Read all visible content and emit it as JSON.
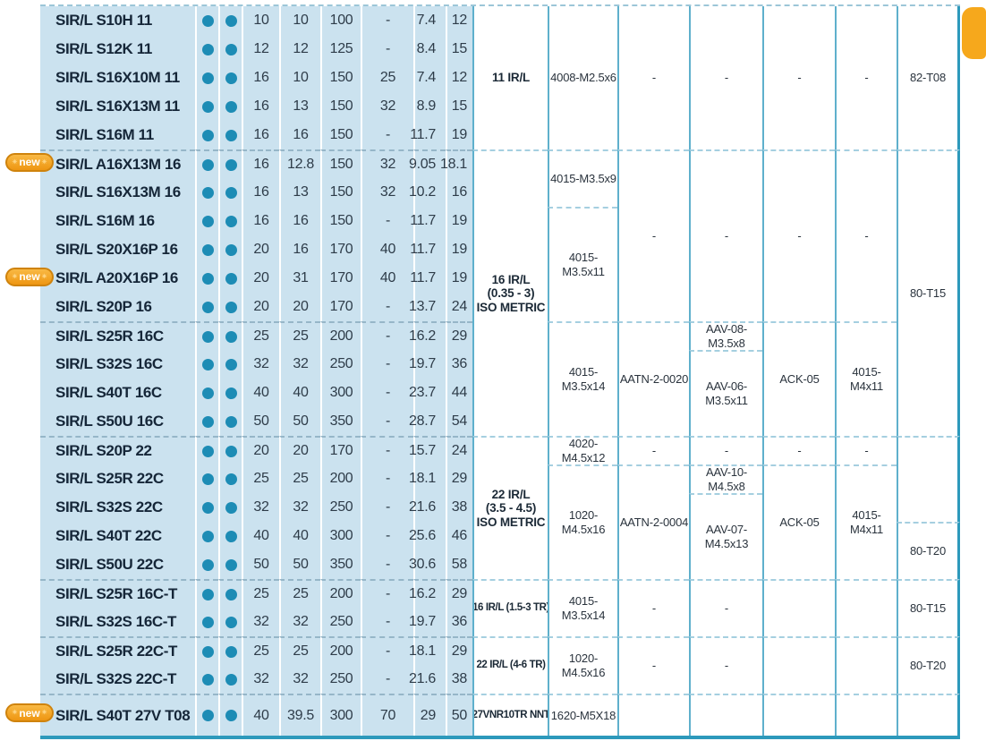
{
  "new_badge_label": "new",
  "colors": {
    "table_blue_background": "#cbe2ef",
    "dot_teal": "#1d8cb5",
    "grid_teal_line": "#5fb0cc",
    "heavy_border_teal": "#2d99bb",
    "dashed_separator": "#a5cfe0",
    "orange_accent": "#f6a81c",
    "model_text": "#152638"
  },
  "left_table": {
    "group_start_rows": [
      6,
      12,
      16,
      21,
      23,
      25
    ],
    "rows": [
      {
        "model": "SIR/L S10H 11",
        "new": false,
        "dots": 2,
        "values": [
          "10",
          "10",
          "100",
          "-",
          "7.4",
          "12"
        ]
      },
      {
        "model": "SIR/L S12K 11",
        "new": false,
        "dots": 2,
        "values": [
          "12",
          "12",
          "125",
          "-",
          "8.4",
          "15"
        ]
      },
      {
        "model": "SIR/L S16X10M 11",
        "new": false,
        "dots": 2,
        "values": [
          "16",
          "10",
          "150",
          "25",
          "7.4",
          "12"
        ]
      },
      {
        "model": "SIR/L S16X13M 11",
        "new": false,
        "dots": 2,
        "values": [
          "16",
          "13",
          "150",
          "32",
          "8.9",
          "15"
        ]
      },
      {
        "model": "SIR/L S16M 11",
        "new": false,
        "dots": 2,
        "values": [
          "16",
          "16",
          "150",
          "-",
          "11.7",
          "19"
        ]
      },
      {
        "model": "SIR/L A16X13M 16",
        "new": true,
        "dots": 2,
        "values": [
          "16",
          "12.8",
          "150",
          "32",
          "9.05",
          "18.1"
        ]
      },
      {
        "model": "SIR/L S16X13M 16",
        "new": false,
        "dots": 2,
        "values": [
          "16",
          "13",
          "150",
          "32",
          "10.2",
          "16"
        ]
      },
      {
        "model": "SIR/L S16M 16",
        "new": false,
        "dots": 2,
        "values": [
          "16",
          "16",
          "150",
          "-",
          "11.7",
          "19"
        ]
      },
      {
        "model": "SIR/L S20X16P 16",
        "new": false,
        "dots": 2,
        "values": [
          "20",
          "16",
          "170",
          "40",
          "11.7",
          "19"
        ]
      },
      {
        "model": "SIR/L A20X16P 16",
        "new": true,
        "dots": 2,
        "values": [
          "20",
          "31",
          "170",
          "40",
          "11.7",
          "19"
        ]
      },
      {
        "model": "SIR/L S20P 16",
        "new": false,
        "dots": 2,
        "values": [
          "20",
          "20",
          "170",
          "-",
          "13.7",
          "24"
        ]
      },
      {
        "model": "SIR/L S25R 16C",
        "new": false,
        "dots": 2,
        "values": [
          "25",
          "25",
          "200",
          "-",
          "16.2",
          "29"
        ]
      },
      {
        "model": "SIR/L S32S 16C",
        "new": false,
        "dots": 2,
        "values": [
          "32",
          "32",
          "250",
          "-",
          "19.7",
          "36"
        ]
      },
      {
        "model": "SIR/L S40T 16C",
        "new": false,
        "dots": 2,
        "values": [
          "40",
          "40",
          "300",
          "-",
          "23.7",
          "44"
        ]
      },
      {
        "model": "SIR/L S50U 16C",
        "new": false,
        "dots": 2,
        "values": [
          "50",
          "50",
          "350",
          "-",
          "28.7",
          "54"
        ]
      },
      {
        "model": "SIR/L S20P 22",
        "new": false,
        "dots": 2,
        "values": [
          "20",
          "20",
          "170",
          "-",
          "15.7",
          "24"
        ]
      },
      {
        "model": "SIR/L S25R 22C",
        "new": false,
        "dots": 2,
        "values": [
          "25",
          "25",
          "200",
          "-",
          "18.1",
          "29"
        ]
      },
      {
        "model": "SIR/L S32S 22C",
        "new": false,
        "dots": 2,
        "values": [
          "32",
          "32",
          "250",
          "-",
          "21.6",
          "38"
        ]
      },
      {
        "model": "SIR/L S40T 22C",
        "new": false,
        "dots": 2,
        "values": [
          "40",
          "40",
          "300",
          "-",
          "25.6",
          "46"
        ]
      },
      {
        "model": "SIR/L S50U 22C",
        "new": false,
        "dots": 2,
        "values": [
          "50",
          "50",
          "350",
          "-",
          "30.6",
          "58"
        ]
      },
      {
        "model": "SIR/L S25R 16C-T",
        "new": false,
        "dots": 2,
        "values": [
          "25",
          "25",
          "200",
          "-",
          "16.2",
          "29"
        ]
      },
      {
        "model": "SIR/L S32S 16C-T",
        "new": false,
        "dots": 2,
        "values": [
          "32",
          "32",
          "250",
          "-",
          "19.7",
          "36"
        ]
      },
      {
        "model": "SIR/L S25R 22C-T",
        "new": false,
        "dots": 2,
        "values": [
          "25",
          "25",
          "200",
          "-",
          "18.1",
          "29"
        ]
      },
      {
        "model": "SIR/L S32S 22C-T",
        "new": false,
        "dots": 2,
        "values": [
          "32",
          "32",
          "250",
          "-",
          "21.6",
          "38"
        ]
      },
      {
        "model": "SIR/L S40T 27V T08",
        "new": true,
        "dots": 2,
        "values": [
          "40",
          "39.5",
          "300",
          "70",
          "29",
          "50"
        ]
      }
    ]
  },
  "right_table": {
    "columns": [
      {
        "id": "insert-group",
        "cells": [
          {
            "row": 1,
            "span": 5,
            "lines": [
              "11 IR/L"
            ],
            "style": "section"
          },
          {
            "row": 6,
            "span": 10,
            "lines": [
              "16 IR/L",
              "(0.35 - 3)",
              "ISO METRIC"
            ],
            "style": "section"
          },
          {
            "row": 16,
            "span": 5,
            "lines": [
              "22 IR/L",
              "(3.5 - 4.5)",
              "ISO METRIC"
            ],
            "style": "section"
          },
          {
            "row": 21,
            "span": 2,
            "lines": [
              "16 IR/L (1.5-3 TR)"
            ],
            "style": "section-small"
          },
          {
            "row": 23,
            "span": 2,
            "lines": [
              "22 IR/L (4-6 TR)"
            ],
            "style": "section-small"
          },
          {
            "row": 25,
            "span": 1,
            "lines": [
              "27VNR10TR NNT"
            ],
            "style": "section-small"
          }
        ]
      },
      {
        "id": "key",
        "cells": [
          {
            "row": 1,
            "span": 5,
            "lines": [
              "4008-M2.5x6"
            ]
          },
          {
            "row": 6,
            "span": 2,
            "lines": [
              "4015-M3.5x9"
            ]
          },
          {
            "row": 8,
            "span": 4,
            "lines": [
              "4015-M3.5x11"
            ]
          },
          {
            "row": 12,
            "span": 4,
            "lines": [
              "4015-M3.5x14"
            ]
          },
          {
            "row": 16,
            "span": 1,
            "lines": [
              "4020-M4.5x12"
            ]
          },
          {
            "row": 17,
            "span": 4,
            "lines": [
              "1020-M4.5x16"
            ]
          },
          {
            "row": 21,
            "span": 2,
            "lines": [
              "4015-M3.5x14"
            ]
          },
          {
            "row": 23,
            "span": 2,
            "lines": [
              "1020-M4.5x16"
            ]
          },
          {
            "row": 25,
            "span": 1,
            "lines": [
              "1620-M5X18"
            ]
          }
        ]
      },
      {
        "id": "wrench",
        "cells": [
          {
            "row": 1,
            "span": 5,
            "lines": [
              "-"
            ]
          },
          {
            "row": 6,
            "span": 6,
            "lines": [
              "-"
            ]
          },
          {
            "row": 12,
            "span": 4,
            "lines": [
              "AATN-2-0020"
            ]
          },
          {
            "row": 16,
            "span": 1,
            "lines": [
              "-"
            ]
          },
          {
            "row": 17,
            "span": 4,
            "lines": [
              "AATN-2-0004"
            ]
          },
          {
            "row": 21,
            "span": 2,
            "lines": [
              "-"
            ]
          },
          {
            "row": 23,
            "span": 2,
            "lines": [
              "-"
            ]
          },
          {
            "row": 25,
            "span": 1,
            "lines": [
              ""
            ]
          }
        ]
      },
      {
        "id": "aav-screw",
        "cells": [
          {
            "row": 1,
            "span": 5,
            "lines": [
              "-"
            ]
          },
          {
            "row": 6,
            "span": 6,
            "lines": [
              "-"
            ]
          },
          {
            "row": 12,
            "span": 1,
            "lines": [
              "AAV-08-M3.5x8"
            ]
          },
          {
            "row": 13,
            "span": 3,
            "lines": [
              "AAV-06-M3.5x11"
            ]
          },
          {
            "row": 16,
            "span": 1,
            "lines": [
              "-"
            ]
          },
          {
            "row": 17,
            "span": 1,
            "lines": [
              "AAV-10-M4.5x8"
            ]
          },
          {
            "row": 18,
            "span": 3,
            "lines": [
              "AAV-07-M4.5x13"
            ]
          },
          {
            "row": 21,
            "span": 2,
            "lines": [
              "-"
            ]
          },
          {
            "row": 23,
            "span": 2,
            "lines": [
              "-"
            ]
          },
          {
            "row": 25,
            "span": 1,
            "lines": [
              ""
            ]
          }
        ]
      },
      {
        "id": "ack",
        "cells": [
          {
            "row": 1,
            "span": 5,
            "lines": [
              "-"
            ]
          },
          {
            "row": 6,
            "span": 6,
            "lines": [
              "-"
            ]
          },
          {
            "row": 12,
            "span": 4,
            "lines": [
              "ACK-05"
            ]
          },
          {
            "row": 16,
            "span": 1,
            "lines": [
              "-"
            ]
          },
          {
            "row": 17,
            "span": 4,
            "lines": [
              "ACK-05"
            ]
          },
          {
            "row": 21,
            "span": 2,
            "lines": [
              ""
            ]
          },
          {
            "row": 23,
            "span": 2,
            "lines": [
              ""
            ]
          },
          {
            "row": 25,
            "span": 1,
            "lines": [
              ""
            ]
          }
        ]
      },
      {
        "id": "m4-key",
        "cells": [
          {
            "row": 1,
            "span": 5,
            "lines": [
              "-"
            ]
          },
          {
            "row": 6,
            "span": 6,
            "lines": [
              "-"
            ]
          },
          {
            "row": 12,
            "span": 4,
            "lines": [
              "4015-M4x11"
            ]
          },
          {
            "row": 16,
            "span": 1,
            "lines": [
              "-"
            ]
          },
          {
            "row": 17,
            "span": 4,
            "lines": [
              "4015-M4x11"
            ]
          },
          {
            "row": 21,
            "span": 2,
            "lines": [
              ""
            ]
          },
          {
            "row": 23,
            "span": 2,
            "lines": [
              ""
            ]
          },
          {
            "row": 25,
            "span": 1,
            "lines": [
              ""
            ]
          }
        ]
      },
      {
        "id": "torx-key",
        "cells": [
          {
            "row": 1,
            "span": 5,
            "lines": [
              "82-T08"
            ]
          },
          {
            "row": 6,
            "span": 10,
            "lines": [
              "80-T15"
            ]
          },
          {
            "row": 16,
            "span": 3,
            "lines": [
              ""
            ]
          },
          {
            "row": 19,
            "span": 2,
            "lines": [
              "80-T20"
            ]
          },
          {
            "row": 21,
            "span": 2,
            "lines": [
              "80-T15"
            ]
          },
          {
            "row": 23,
            "span": 2,
            "lines": [
              "80-T20"
            ]
          },
          {
            "row": 25,
            "span": 1,
            "lines": [
              ""
            ]
          }
        ]
      }
    ]
  }
}
